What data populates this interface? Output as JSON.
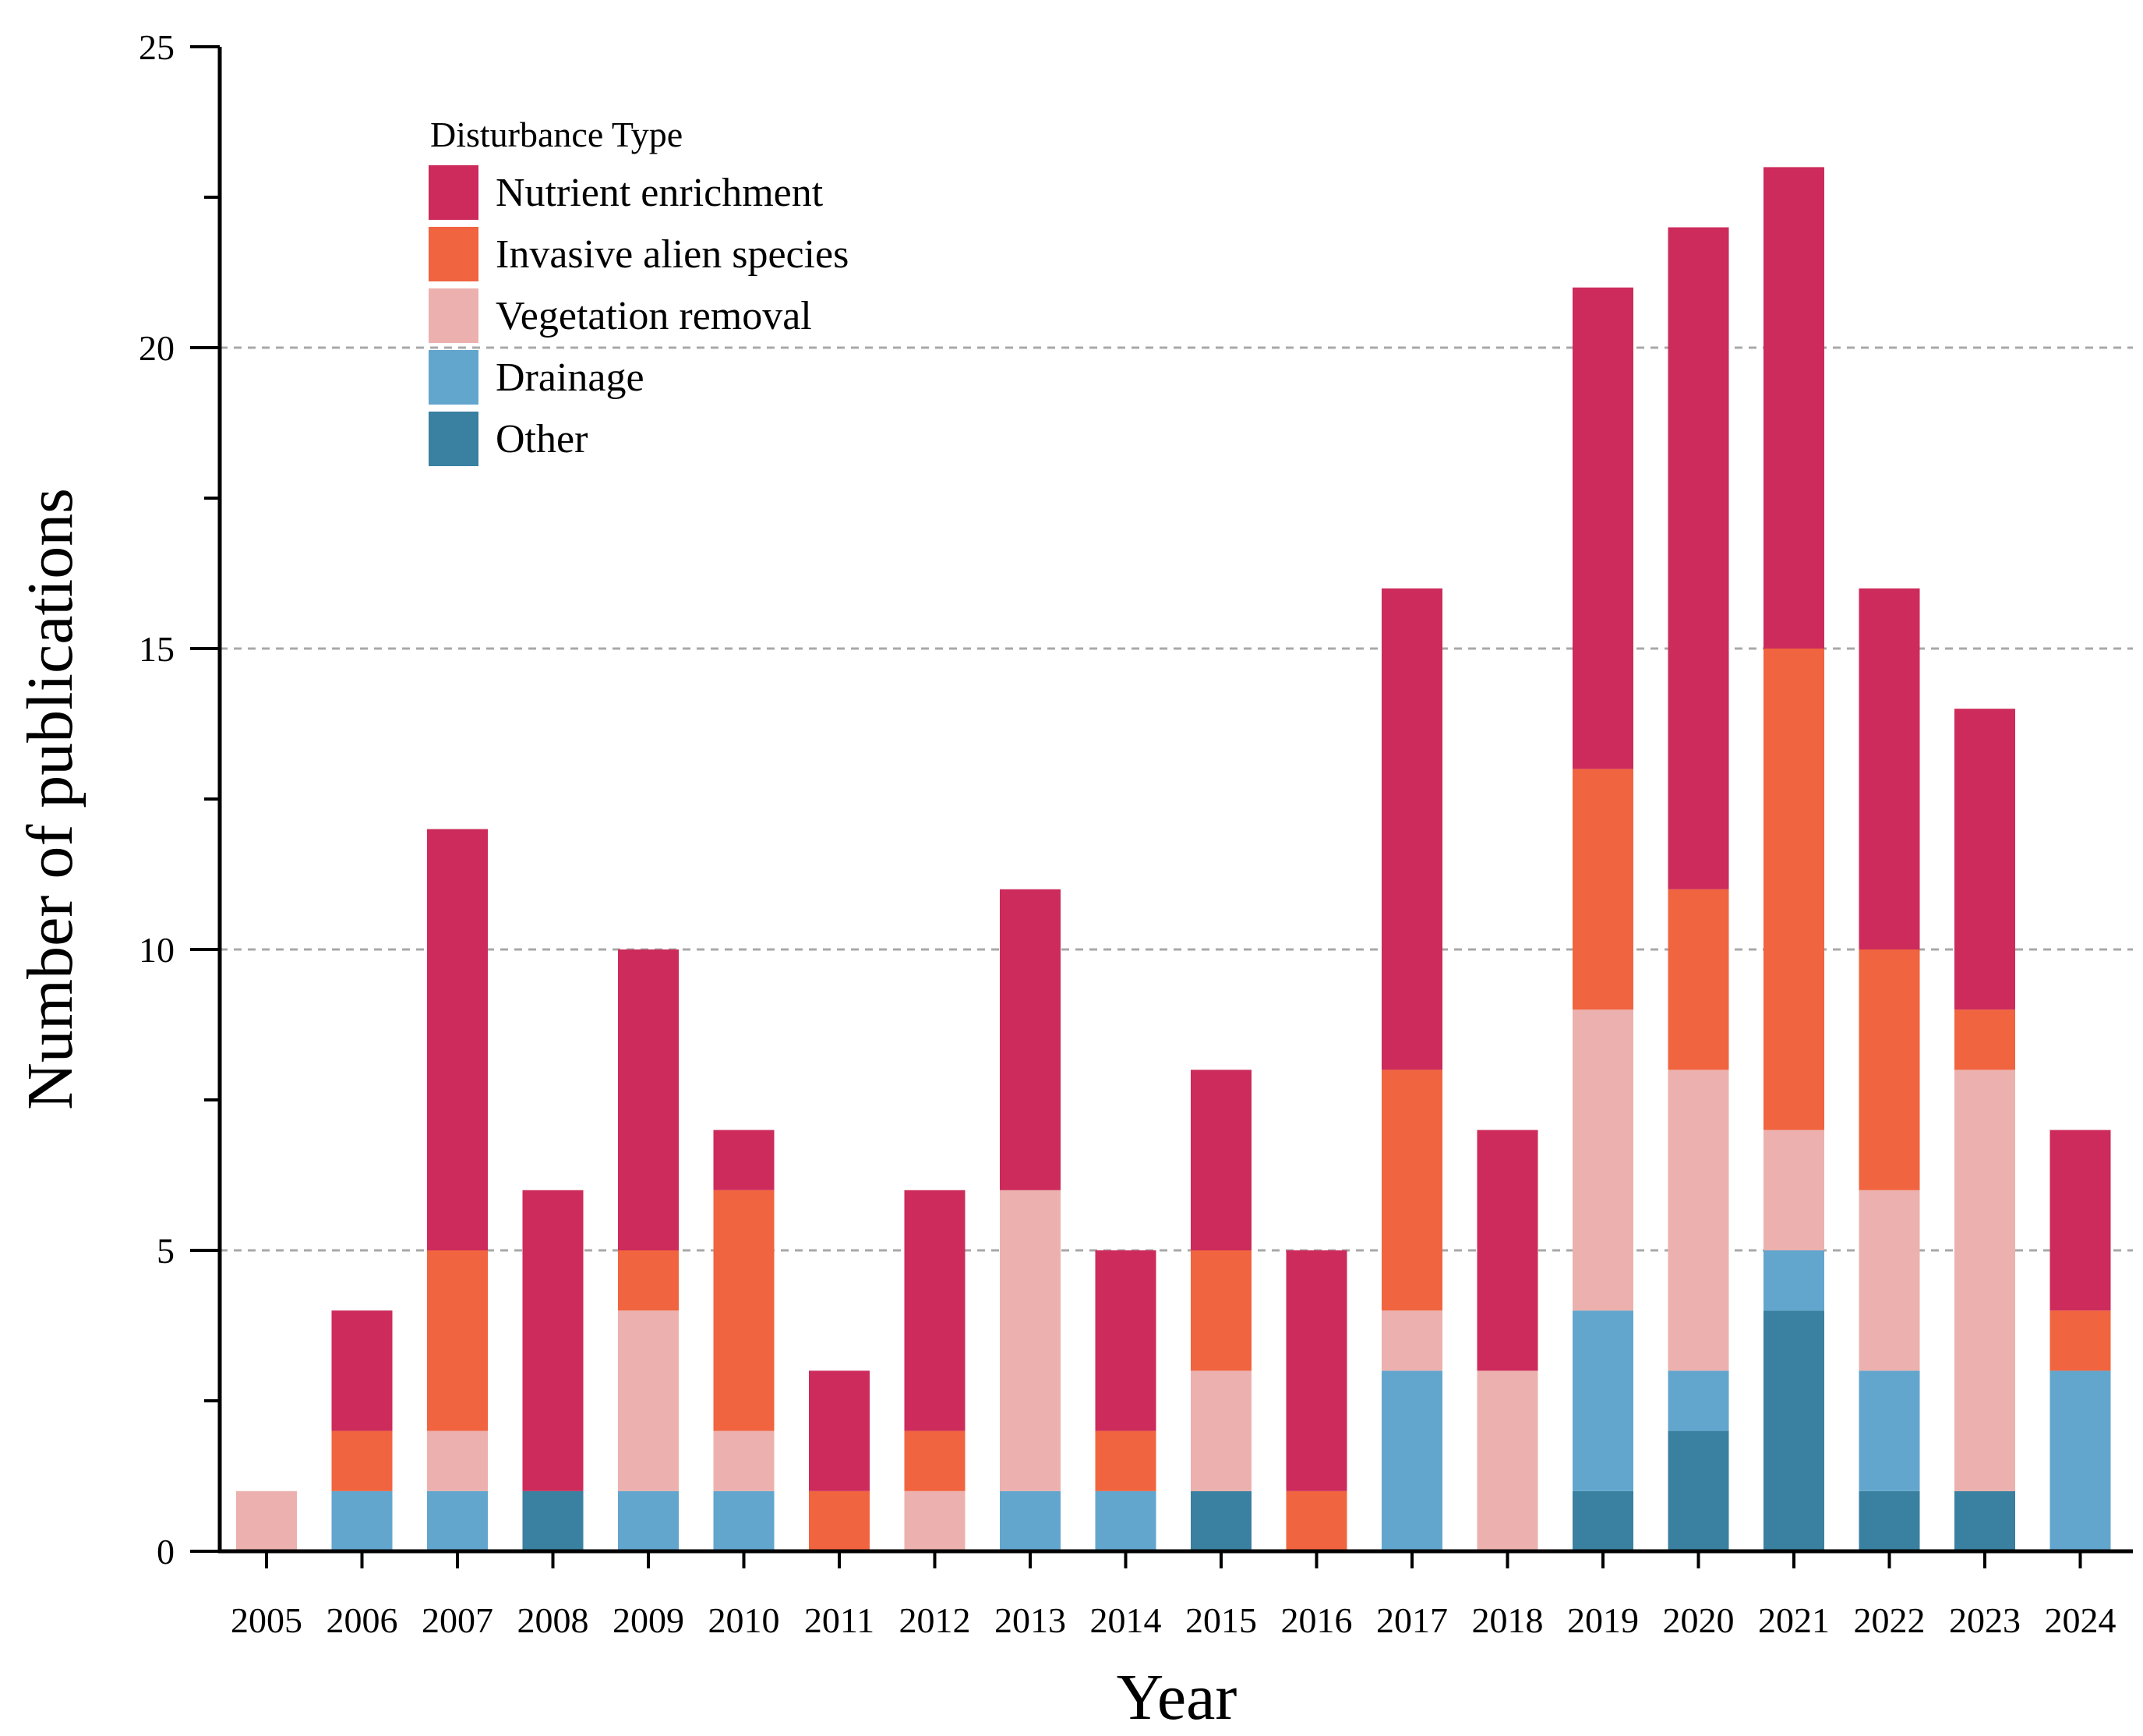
{
  "chart_data": {
    "type": "bar",
    "stacked": true,
    "title": "",
    "xlabel": "Year",
    "ylabel": "Number of publications",
    "ylim": [
      0,
      25
    ],
    "yticks": [
      0,
      5,
      10,
      15,
      20,
      25
    ],
    "grid": "horizontal dashed at major ticks",
    "categories": [
      "2005",
      "2006",
      "2007",
      "2008",
      "2009",
      "2010",
      "2011",
      "2012",
      "2013",
      "2014",
      "2015",
      "2016",
      "2017",
      "2018",
      "2019",
      "2020",
      "2021",
      "2022",
      "2023",
      "2024"
    ],
    "legend": {
      "title": "Disturbance Type",
      "position": "top-left"
    },
    "series": [
      {
        "name": "Other",
        "color": "#3A80A0",
        "values": [
          0,
          0,
          0,
          1,
          0,
          0,
          0,
          0,
          0,
          0,
          1,
          0,
          0,
          0,
          1,
          2,
          4,
          1,
          1,
          0
        ]
      },
      {
        "name": "Drainage",
        "color": "#62A6CE",
        "values": [
          0,
          1,
          1,
          0,
          1,
          1,
          0,
          0,
          1,
          1,
          0,
          0,
          3,
          0,
          3,
          1,
          1,
          2,
          0,
          3
        ]
      },
      {
        "name": "Vegetation removal",
        "color": "#ECB1AE",
        "values": [
          1,
          0,
          1,
          0,
          3,
          1,
          0,
          1,
          5,
          0,
          2,
          0,
          1,
          3,
          5,
          5,
          2,
          3,
          7,
          0
        ]
      },
      {
        "name": "Invasive alien species",
        "color": "#F0643F",
        "values": [
          0,
          1,
          3,
          0,
          1,
          4,
          1,
          1,
          0,
          1,
          2,
          1,
          4,
          0,
          4,
          3,
          8,
          4,
          1,
          1
        ]
      },
      {
        "name": "Nutrient enrichment",
        "color": "#CC2B5B",
        "values": [
          0,
          2,
          7,
          5,
          5,
          1,
          2,
          4,
          5,
          3,
          3,
          4,
          8,
          4,
          8,
          11,
          8,
          6,
          5,
          3
        ]
      }
    ],
    "legend_order": [
      "Nutrient enrichment",
      "Invasive alien species",
      "Vegetation removal",
      "Drainage",
      "Other"
    ]
  }
}
